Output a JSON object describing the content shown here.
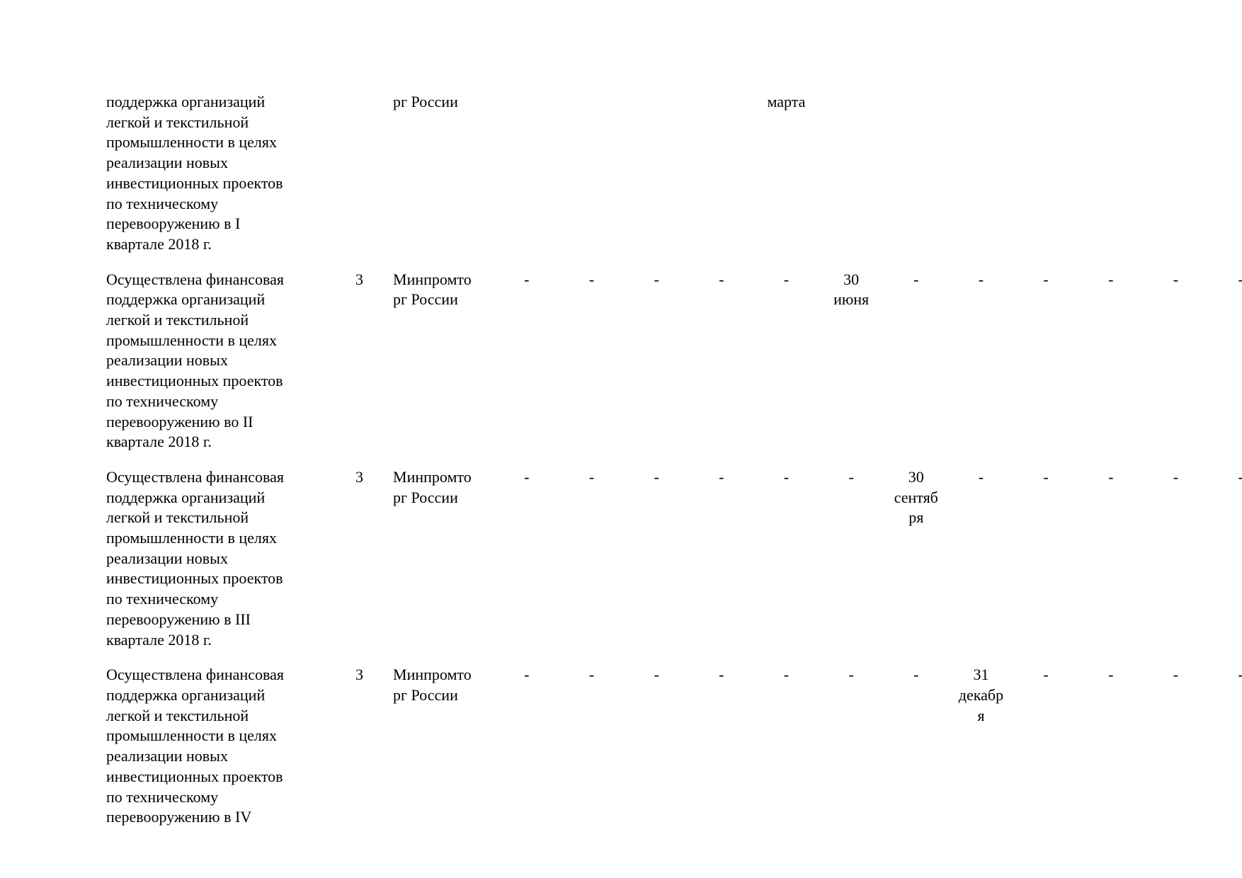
{
  "table": {
    "rows": [
      {
        "text": "поддержка организаций\nлегкой и текстильной\nпромышленности в целях\nреализации новых\nинвестиционных проектов\nпо техническому\nперевооружению в I\nквартале 2018 г.",
        "num": "",
        "ministry": "рг России",
        "cells": [
          "",
          "",
          "",
          "",
          "марта",
          "",
          "",
          "",
          "",
          "",
          "",
          ""
        ]
      },
      {
        "text": "Осуществлена финансовая\nподдержка организаций\nлегкой и текстильной\nпромышленности в целях\nреализации новых\nинвестиционных проектов\nпо техническому\nперевооружению во II\nквартале 2018 г.",
        "num": "3",
        "ministry": "Минпромто\nрг России",
        "cells": [
          "-",
          "-",
          "-",
          "-",
          "-",
          "30\nиюня",
          "-",
          "-",
          "-",
          "-",
          "-",
          "-"
        ]
      },
      {
        "text": "Осуществлена финансовая\nподдержка организаций\nлегкой и текстильной\nпромышленности в целях\nреализации новых\nинвестиционных проектов\nпо техническому\nперевооружению в III\nквартале 2018 г.",
        "num": "3",
        "ministry": "Минпромто\nрг России",
        "cells": [
          "-",
          "-",
          "-",
          "-",
          "-",
          "-",
          "30\nсентяб\nря",
          "-",
          "-",
          "-",
          "-",
          "-"
        ]
      },
      {
        "text": "Осуществлена финансовая\nподдержка организаций\nлегкой и текстильной\nпромышленности в целях\nреализации новых\nинвестиционных проектов\nпо техническому\nперевооружению в IV",
        "num": "3",
        "ministry": "Минпромто\nрг России",
        "cells": [
          "-",
          "-",
          "-",
          "-",
          "-",
          "-",
          "-",
          "31\nдекабр\nя",
          "-",
          "-",
          "-",
          "-"
        ]
      }
    ]
  }
}
